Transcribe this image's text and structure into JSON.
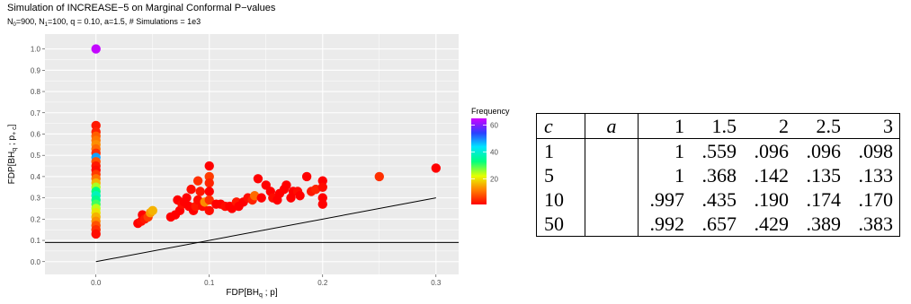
{
  "chart_data": {
    "type": "scatter",
    "title": "Simulation of INCREASE−5 on Marginal Conformal P−values",
    "subtitle": {
      "n0_base": "N",
      "n0_sub": "0",
      "n0_rest": "=900, ",
      "n1_base": "N",
      "n1_sub": "1",
      "n1_rest": "=100, q = 0.10, a=1.5, # Simulations  = 1e3"
    },
    "xlabel": {
      "base": "FDP[BH",
      "sub": "q",
      "rest": " ; p]"
    },
    "ylabel": {
      "base": "FDP[BH",
      "sub1": "q",
      "mid": " ; p",
      "sub2": "+ c",
      "rest": "]"
    },
    "xlim": [
      -0.045,
      0.32
    ],
    "ylim": [
      -0.06,
      1.07
    ],
    "x_ticks": [
      0.0,
      0.1,
      0.2,
      0.3
    ],
    "x_tick_labels": [
      "0.0",
      "0.1",
      "0.2",
      "0.3"
    ],
    "y_ticks": [
      0.0,
      0.1,
      0.2,
      0.3,
      0.4,
      0.5,
      0.6,
      0.7,
      0.8,
      0.9,
      1.0
    ],
    "y_tick_labels": [
      "0.0",
      "0.1",
      "0.2",
      "0.3",
      "0.4",
      "0.5",
      "0.6",
      "0.7",
      "0.8",
      "0.9",
      "1.0"
    ],
    "hline_y": 0.09,
    "diagonal": [
      [
        0,
        0
      ],
      [
        0.3,
        0.3
      ]
    ],
    "legend": {
      "title": "Frequency",
      "labels": [
        "20",
        "40",
        "60"
      ],
      "values": [
        20,
        40,
        60
      ],
      "min": 1,
      "max": 65,
      "placement": "right"
    },
    "points": [
      [
        0,
        1.0,
        64
      ],
      [
        0,
        0.64,
        3
      ],
      [
        0,
        0.61,
        4
      ],
      [
        0,
        0.59,
        9
      ],
      [
        0,
        0.57,
        11
      ],
      [
        0,
        0.55,
        13
      ],
      [
        0,
        0.53,
        10
      ],
      [
        0,
        0.51,
        5
      ],
      [
        0,
        0.49,
        48
      ],
      [
        0,
        0.47,
        8
      ],
      [
        0,
        0.45,
        3
      ],
      [
        0,
        0.43,
        2
      ],
      [
        0,
        0.41,
        6
      ],
      [
        0,
        0.39,
        11
      ],
      [
        0,
        0.37,
        16
      ],
      [
        0,
        0.35,
        25
      ],
      [
        0,
        0.33,
        33
      ],
      [
        0,
        0.31,
        38
      ],
      [
        0,
        0.29,
        34
      ],
      [
        0,
        0.27,
        30
      ],
      [
        0,
        0.25,
        24
      ],
      [
        0,
        0.23,
        20
      ],
      [
        0,
        0.21,
        16
      ],
      [
        0,
        0.19,
        13
      ],
      [
        0,
        0.17,
        8
      ],
      [
        0,
        0.15,
        5
      ],
      [
        0,
        0.13,
        2
      ],
      [
        0.037,
        0.18,
        1
      ],
      [
        0.04,
        0.19,
        2
      ],
      [
        0.041,
        0.22,
        1
      ],
      [
        0.043,
        0.2,
        3
      ],
      [
        0.046,
        0.21,
        6
      ],
      [
        0.048,
        0.23,
        14
      ],
      [
        0.05,
        0.24,
        16
      ],
      [
        0.066,
        0.21,
        1
      ],
      [
        0.07,
        0.22,
        1
      ],
      [
        0.072,
        0.29,
        1
      ],
      [
        0.074,
        0.24,
        1
      ],
      [
        0.076,
        0.27,
        2
      ],
      [
        0.078,
        0.28,
        1
      ],
      [
        0.08,
        0.3,
        1
      ],
      [
        0.082,
        0.26,
        1
      ],
      [
        0.084,
        0.34,
        2
      ],
      [
        0.086,
        0.24,
        1
      ],
      [
        0.088,
        0.26,
        3
      ],
      [
        0.09,
        0.29,
        2
      ],
      [
        0.09,
        0.38,
        5
      ],
      [
        0.092,
        0.33,
        3
      ],
      [
        0.094,
        0.26,
        2
      ],
      [
        0.096,
        0.28,
        13
      ],
      [
        0.1,
        0.45,
        1
      ],
      [
        0.1,
        0.4,
        6
      ],
      [
        0.1,
        0.37,
        4
      ],
      [
        0.1,
        0.33,
        1
      ],
      [
        0.1,
        0.29,
        5
      ],
      [
        0.1,
        0.24,
        2
      ],
      [
        0.106,
        0.27,
        1
      ],
      [
        0.11,
        0.27,
        1
      ],
      [
        0.114,
        0.26,
        2
      ],
      [
        0.118,
        0.26,
        1
      ],
      [
        0.12,
        0.25,
        1
      ],
      [
        0.124,
        0.28,
        3
      ],
      [
        0.126,
        0.26,
        1
      ],
      [
        0.13,
        0.28,
        1
      ],
      [
        0.134,
        0.3,
        2
      ],
      [
        0.138,
        0.29,
        4
      ],
      [
        0.14,
        0.31,
        10
      ],
      [
        0.143,
        0.39,
        1
      ],
      [
        0.146,
        0.3,
        1
      ],
      [
        0.15,
        0.36,
        1
      ],
      [
        0.154,
        0.33,
        1
      ],
      [
        0.156,
        0.3,
        2
      ],
      [
        0.16,
        0.29,
        1
      ],
      [
        0.162,
        0.32,
        1
      ],
      [
        0.166,
        0.34,
        1
      ],
      [
        0.168,
        0.36,
        1
      ],
      [
        0.172,
        0.3,
        1
      ],
      [
        0.174,
        0.33,
        1
      ],
      [
        0.178,
        0.33,
        2
      ],
      [
        0.18,
        0.31,
        1
      ],
      [
        0.186,
        0.4,
        1
      ],
      [
        0.19,
        0.33,
        3
      ],
      [
        0.194,
        0.34,
        4
      ],
      [
        0.2,
        0.38,
        1
      ],
      [
        0.2,
        0.35,
        2
      ],
      [
        0.2,
        0.3,
        1
      ],
      [
        0.2,
        0.27,
        1
      ],
      [
        0.25,
        0.4,
        5
      ],
      [
        0.3,
        0.44,
        1
      ]
    ]
  },
  "table": {
    "header": [
      "c",
      "a",
      "1",
      "1.5",
      "2",
      "2.5",
      "3"
    ],
    "rows": [
      [
        "1",
        "",
        "1",
        ".559",
        ".096",
        ".096",
        ".098"
      ],
      [
        "5",
        "",
        "1",
        ".368",
        ".142",
        ".135",
        ".133"
      ],
      [
        "10",
        "",
        ".997",
        ".435",
        ".190",
        ".174",
        ".170"
      ],
      [
        "50",
        "",
        ".992",
        ".657",
        ".429",
        ".389",
        ".383"
      ]
    ]
  }
}
